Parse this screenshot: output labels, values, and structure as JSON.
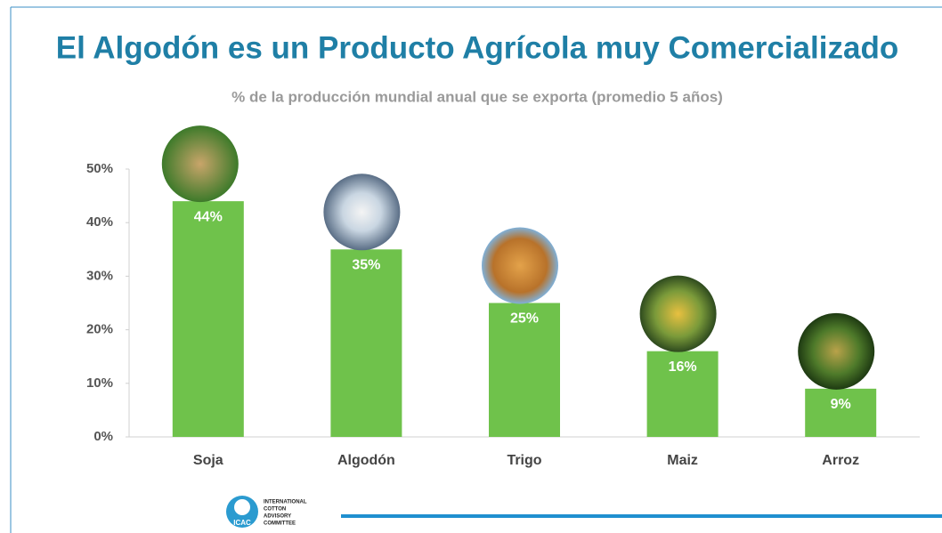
{
  "chart_data": {
    "type": "bar",
    "title": "El Algodón es un Producto Agrícola muy Comercializado",
    "subtitle": "% de la producción mundial anual que se exporta (promedio 5 años)",
    "categories": [
      "Soja",
      "Algodón",
      "Trigo",
      "Maiz",
      "Arroz"
    ],
    "values": [
      44,
      35,
      25,
      16,
      9
    ],
    "value_labels": [
      "44%",
      "35%",
      "25%",
      "16%",
      "9%"
    ],
    "color": "#6fc24b",
    "ylim": [
      0,
      50
    ],
    "yticks": [
      {
        "value": 0,
        "label": "0%"
      },
      {
        "value": 10,
        "label": "10%"
      },
      {
        "value": 20,
        "label": "20%"
      },
      {
        "value": 30,
        "label": "30%"
      },
      {
        "value": 40,
        "label": "40%"
      },
      {
        "value": 50,
        "label": "50%"
      }
    ],
    "grid": false
  },
  "logo": {
    "abbr": "ICAC",
    "name": [
      "INTERNATIONAL",
      "COTTON",
      "ADVISORY",
      "COMMITTEE"
    ]
  }
}
